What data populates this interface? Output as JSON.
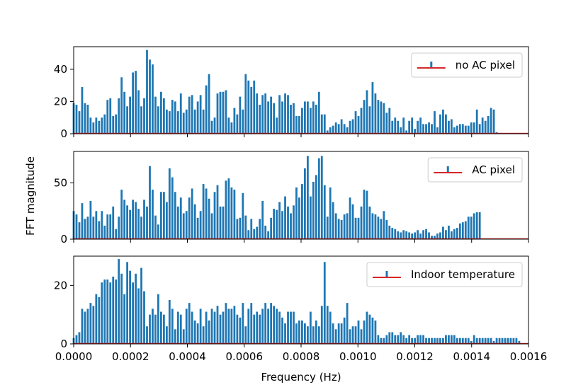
{
  "chart_data": {
    "type": "bar",
    "ylabel": "FFT magnitude",
    "xlabel": "Frequency (Hz)",
    "xlim": [
      0,
      0.0016
    ],
    "xticks": [
      "0.0000",
      "0.0002",
      "0.0004",
      "0.0006",
      "0.0008",
      "0.0010",
      "0.0012",
      "0.0014",
      "0.0016"
    ],
    "xtick_values": [
      0,
      0.0002,
      0.0004,
      0.0006,
      0.0008,
      0.001,
      0.0012,
      0.0014,
      0.0016
    ],
    "bar_color": "#1f77b4",
    "baseline_color": "#d62728",
    "bin_width_hz": 9.92e-06,
    "panels": [
      {
        "legend": "no AC pixel",
        "ylim": [
          0,
          54
        ],
        "yticks": [
          "0",
          "20",
          "40"
        ],
        "ytick_values": [
          0,
          20,
          40
        ],
        "values": [
          19,
          18,
          14,
          29,
          19,
          18,
          10,
          7,
          10,
          8,
          10,
          12,
          21,
          22,
          11,
          12,
          22,
          35,
          26,
          17,
          23,
          38,
          39,
          27,
          17,
          22,
          52,
          46,
          43,
          23,
          17,
          26,
          22,
          15,
          14,
          21,
          20,
          14,
          25,
          13,
          15,
          23,
          24,
          15,
          20,
          24,
          15,
          30,
          37,
          8,
          10,
          25,
          26,
          26,
          27,
          10,
          7,
          16,
          12,
          23,
          15,
          37,
          33,
          29,
          33,
          25,
          18,
          24,
          25,
          20,
          23,
          19,
          10,
          24,
          20,
          25,
          24,
          18,
          19,
          11,
          11,
          16,
          20,
          20,
          16,
          20,
          18,
          26,
          12,
          12,
          2,
          4,
          5,
          7,
          6,
          9,
          6,
          4,
          8,
          9,
          14,
          11,
          16,
          21,
          27,
          17,
          32,
          25,
          21,
          20,
          19,
          13,
          16,
          8,
          10,
          8,
          4,
          10,
          2,
          8,
          10,
          3,
          8,
          10,
          6,
          6,
          7,
          6,
          14,
          4,
          12,
          15,
          12,
          8,
          9,
          4,
          5,
          6,
          6,
          5,
          5,
          7,
          7,
          15,
          6,
          10,
          8,
          11,
          16,
          15,
          1
        ]
      },
      {
        "legend": "AC pixel",
        "ylim": [
          0,
          78
        ],
        "yticks": [
          "0",
          "50"
        ],
        "ytick_values": [
          0,
          50
        ],
        "values": [
          25,
          22,
          15,
          32,
          18,
          20,
          34,
          20,
          25,
          16,
          25,
          12,
          22,
          22,
          29,
          9,
          20,
          44,
          35,
          30,
          26,
          35,
          33,
          27,
          20,
          35,
          29,
          65,
          44,
          21,
          13,
          42,
          42,
          33,
          63,
          55,
          42,
          29,
          37,
          23,
          25,
          37,
          45,
          31,
          19,
          25,
          49,
          45,
          36,
          23,
          42,
          48,
          29,
          29,
          52,
          54,
          46,
          44,
          18,
          19,
          41,
          21,
          8,
          18,
          9,
          11,
          18,
          34,
          12,
          7,
          19,
          27,
          26,
          33,
          25,
          38,
          29,
          23,
          30,
          46,
          37,
          49,
          63,
          74,
          38,
          51,
          57,
          72,
          74,
          48,
          20,
          46,
          33,
          23,
          18,
          17,
          22,
          23,
          37,
          31,
          19,
          19,
          29,
          44,
          43,
          29,
          23,
          22,
          20,
          18,
          25,
          17,
          12,
          10,
          9,
          7,
          6,
          8,
          7,
          6,
          5,
          6,
          8,
          5,
          8,
          9,
          6,
          3,
          3,
          5,
          6,
          11,
          8,
          12,
          7,
          9,
          10,
          14,
          15,
          16,
          20,
          20,
          23,
          24,
          24
        ]
      },
      {
        "legend": "Indoor temperature",
        "ylim": [
          0,
          30
        ],
        "yticks": [
          "0",
          "20"
        ],
        "ytick_values": [
          0,
          20
        ],
        "values": [
          2,
          3,
          4,
          12,
          11,
          12,
          14,
          13,
          17,
          16,
          21,
          22,
          22,
          21,
          23,
          22,
          29,
          24,
          17,
          28,
          25,
          21,
          24,
          19,
          26,
          18,
          6,
          10,
          12,
          10,
          17,
          11,
          10,
          6,
          15,
          12,
          5,
          11,
          10,
          5,
          12,
          14,
          11,
          8,
          7,
          12,
          6,
          11,
          8,
          12,
          11,
          13,
          10,
          11,
          14,
          12,
          12,
          13,
          10,
          9,
          14,
          6,
          12,
          14,
          10,
          11,
          10,
          12,
          14,
          12,
          14,
          13,
          12,
          11,
          9,
          7,
          11,
          11,
          11,
          7,
          8,
          8,
          7,
          6,
          11,
          6,
          8,
          6,
          13,
          28,
          13,
          11,
          7,
          5,
          7,
          7,
          9,
          14,
          5,
          6,
          6,
          8,
          5,
          8,
          11,
          10,
          9,
          8,
          3,
          2,
          2,
          3,
          4,
          4,
          3,
          3,
          4,
          3,
          2,
          3,
          2,
          2,
          3,
          3,
          3,
          2,
          2,
          2,
          2,
          2,
          2,
          2,
          3,
          3,
          3,
          3,
          2,
          2,
          2,
          2,
          2,
          1,
          3,
          2,
          2,
          2,
          2,
          2,
          2,
          1,
          2,
          2,
          2,
          2,
          2,
          2,
          2,
          2,
          1
        ]
      }
    ]
  }
}
